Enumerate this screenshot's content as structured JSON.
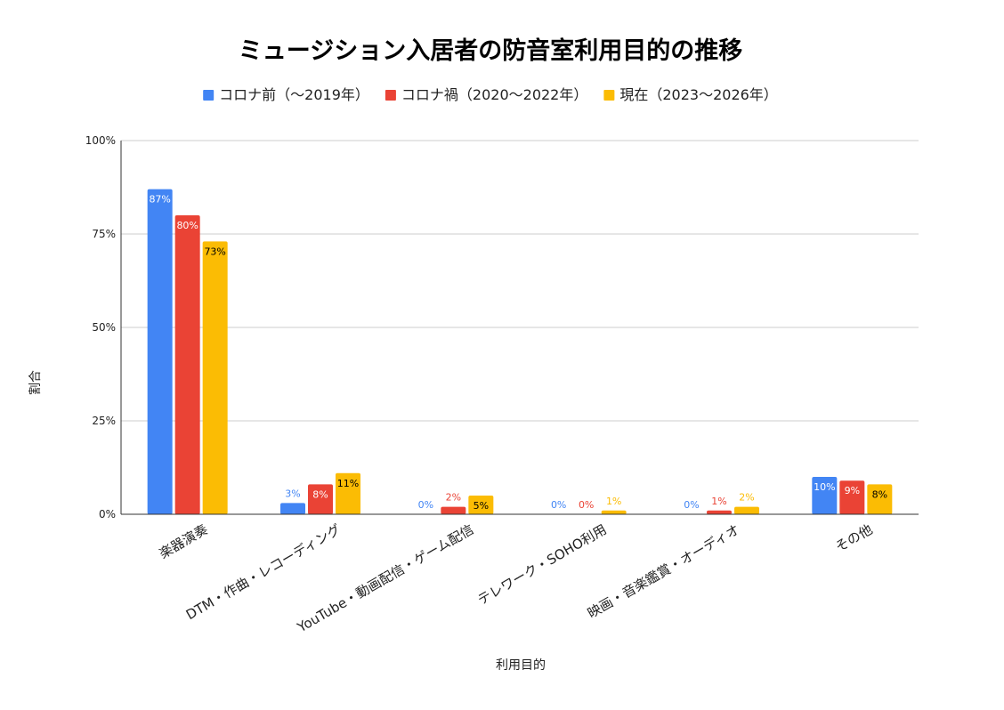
{
  "chart_data": {
    "type": "bar",
    "title": "ミュージション入居者の防音室利用目的の推移",
    "xlabel": "利用目的",
    "ylabel": "割合",
    "categories": [
      "楽器演奏",
      "DTM・作曲・レコーディング",
      "YouTube・動画配信・ゲーム配信",
      "テレワーク・SOHO利用",
      "映画・音楽鑑賞・オーディオ",
      "その他"
    ],
    "series": [
      {
        "name": "コロナ前（～2019年）",
        "color": "#4285f4",
        "values": [
          87,
          3,
          0,
          0,
          0,
          10
        ],
        "labels": [
          "87%",
          "3%",
          "0%",
          "0%",
          "0%",
          "10%"
        ]
      },
      {
        "name": "コロナ禍（2020～2022年）",
        "color": "#ea4335",
        "values": [
          80,
          8,
          2,
          0,
          1,
          9
        ],
        "labels": [
          "80%",
          "8%",
          "2%",
          "0%",
          "1%",
          "9%"
        ]
      },
      {
        "name": "現在（2023～2026年）",
        "color": "#fbbc04",
        "values": [
          73,
          11,
          5,
          1,
          2,
          8
        ],
        "labels": [
          "73%",
          "11%",
          "5%",
          "1%",
          "2%",
          "8%"
        ]
      }
    ],
    "ylim": [
      0,
      100
    ],
    "yticks": [
      {
        "value": 0,
        "label": "0%"
      },
      {
        "value": 25,
        "label": "25%"
      },
      {
        "value": 50,
        "label": "50%"
      },
      {
        "value": 75,
        "label": "75%"
      },
      {
        "value": 100,
        "label": "100%"
      }
    ],
    "grid": true,
    "legend_position": "top"
  }
}
